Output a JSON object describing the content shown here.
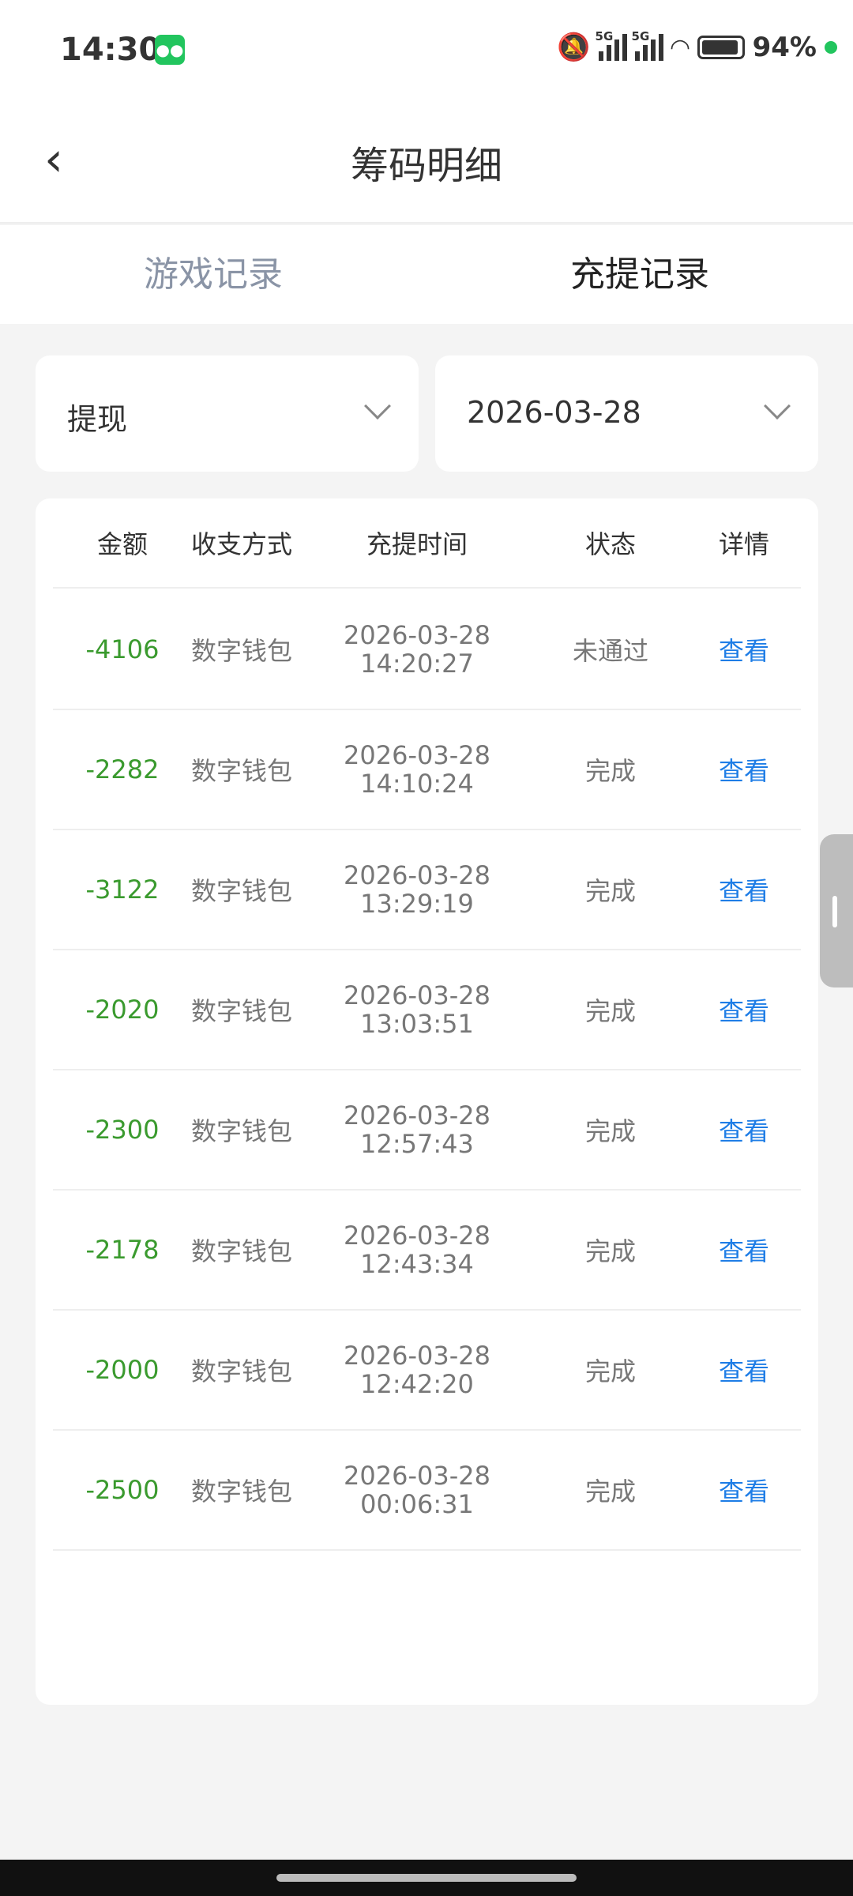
{
  "status_bar": {
    "time": "14:30",
    "battery": "94%",
    "battery_level": 94,
    "network": [
      "5G",
      "5G"
    ]
  },
  "header": {
    "title": "筹码明细"
  },
  "tabs": [
    {
      "label": "游戏记录",
      "active": false
    },
    {
      "label": "充提记录",
      "active": true
    }
  ],
  "filters": {
    "type": "提现",
    "date": "2026-03-28"
  },
  "table": {
    "columns": [
      "金额",
      "收支方式",
      "充提时间",
      "状态",
      "详情"
    ],
    "rows": [
      {
        "amount": "-4106",
        "method": "数字钱包",
        "date": "2026-03-28",
        "time": "14:20:27",
        "status": "未通过",
        "detail": "查看"
      },
      {
        "amount": "-2282",
        "method": "数字钱包",
        "date": "2026-03-28",
        "time": "14:10:24",
        "status": "完成",
        "detail": "查看"
      },
      {
        "amount": "-3122",
        "method": "数字钱包",
        "date": "2026-03-28",
        "time": "13:29:19",
        "status": "完成",
        "detail": "查看"
      },
      {
        "amount": "-2020",
        "method": "数字钱包",
        "date": "2026-03-28",
        "time": "13:03:51",
        "status": "完成",
        "detail": "查看"
      },
      {
        "amount": "-2300",
        "method": "数字钱包",
        "date": "2026-03-28",
        "time": "12:57:43",
        "status": "完成",
        "detail": "查看"
      },
      {
        "amount": "-2178",
        "method": "数字钱包",
        "date": "2026-03-28",
        "time": "12:43:34",
        "status": "完成",
        "detail": "查看"
      },
      {
        "amount": "-2000",
        "method": "数字钱包",
        "date": "2026-03-28",
        "time": "12:42:20",
        "status": "完成",
        "detail": "查看"
      },
      {
        "amount": "-2500",
        "method": "数字钱包",
        "date": "2026-03-28",
        "time": "00:06:31",
        "status": "完成",
        "detail": "查看"
      }
    ]
  },
  "colors": {
    "amount": "#3a9a2e",
    "link": "#1e7de6",
    "accent_dot": "#22c55e"
  }
}
